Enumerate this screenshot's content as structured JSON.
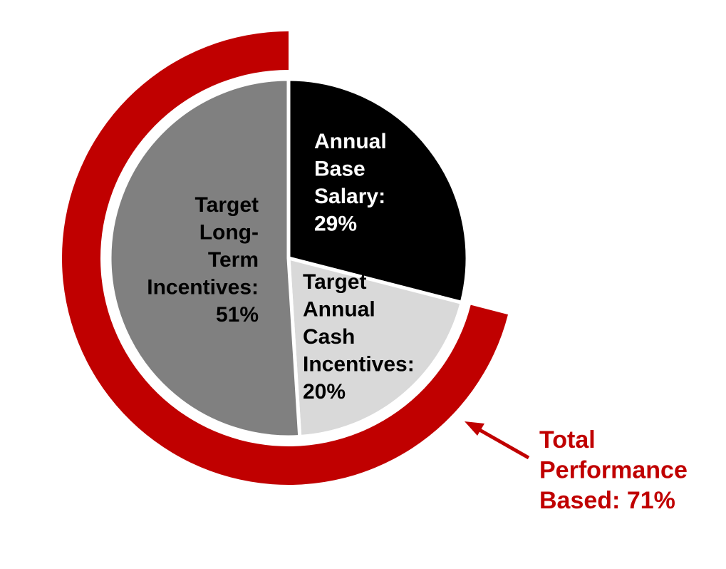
{
  "chart_data": {
    "type": "pie",
    "categories": [
      "Annual Base Salary:",
      "Target Annual Cash Incentives:",
      "Target Long-Term Incentives:"
    ],
    "values": [
      29,
      20,
      51
    ],
    "value_labels": [
      "29%",
      "20%",
      "51%"
    ],
    "colors": [
      "#000000",
      "#d9d9d9",
      "#808080"
    ],
    "highlight": {
      "label": "Total Performance Based: 71%",
      "value": 71,
      "color": "#c00000"
    }
  }
}
